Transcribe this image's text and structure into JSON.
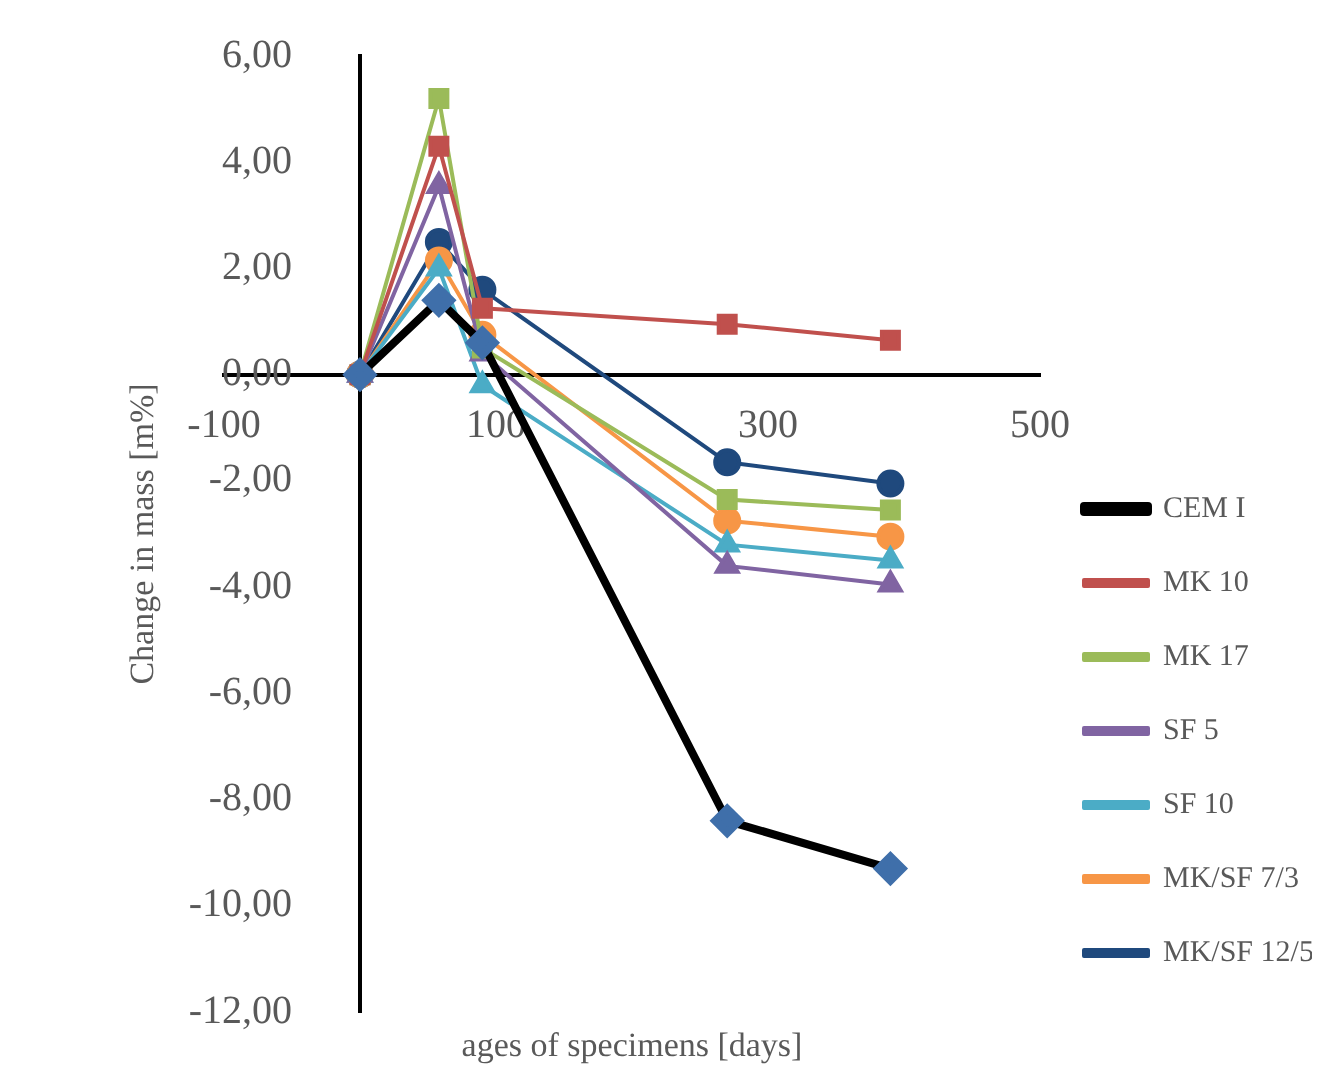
{
  "chart_data": {
    "type": "line",
    "xlabel": "ages of specimens [days]",
    "ylabel": "Change in mass [m%]",
    "x": [
      0,
      58,
      90,
      270,
      390
    ],
    "xlim": [
      -100,
      500
    ],
    "xticks": [
      -100,
      100,
      300,
      500
    ],
    "ylim": [
      -12,
      6
    ],
    "yticks": [
      {
        "value": -12,
        "label": "-12,00"
      },
      {
        "value": -10,
        "label": "-10,00"
      },
      {
        "value": -8,
        "label": "-8,00"
      },
      {
        "value": -6,
        "label": "-6,00"
      },
      {
        "value": -4,
        "label": "-4,00"
      },
      {
        "value": -2,
        "label": "-2,00"
      },
      {
        "value": 0,
        "label": "0,00"
      },
      {
        "value": 2,
        "label": "2,00"
      },
      {
        "value": 4,
        "label": "4,00"
      },
      {
        "value": 6,
        "label": "6,00"
      }
    ],
    "grid": false,
    "legend": "right",
    "series": [
      {
        "name": "CEM I",
        "color": "#000000",
        "colors": [
          "#3f6faa",
          "#3f6faa",
          "#3f6faa",
          "#3f6faa",
          "#3f6faa"
        ],
        "marker": "diamond",
        "values": [
          0,
          1.4,
          0.6,
          -8.4,
          -9.3
        ]
      },
      {
        "name": "MK 10",
        "color": "#c0504d",
        "marker": "square",
        "values": [
          0,
          4.3,
          1.25,
          0.95,
          0.65
        ]
      },
      {
        "name": "MK 17",
        "color": "#9bbb59",
        "marker": "square",
        "values": [
          0,
          5.2,
          0.5,
          -2.35,
          -2.55
        ]
      },
      {
        "name": "SF 5",
        "color": "#8064a2",
        "marker": "triangle",
        "values": [
          0,
          3.55,
          0.4,
          -3.6,
          -3.95
        ]
      },
      {
        "name": "SF 10",
        "color": "#4bacc6",
        "marker": "triangle",
        "values": [
          0,
          2.0,
          -0.2,
          -3.2,
          -3.5
        ]
      },
      {
        "name": "MK/SF 7/3",
        "color": "#f79646",
        "marker": "circle",
        "values": [
          0,
          2.15,
          0.75,
          -2.75,
          -3.05
        ]
      },
      {
        "name": "MK/SF 12/5",
        "color": "#1f497d",
        "marker": "circle",
        "values": [
          0,
          2.5,
          1.6,
          -1.65,
          -2.05
        ]
      }
    ]
  }
}
